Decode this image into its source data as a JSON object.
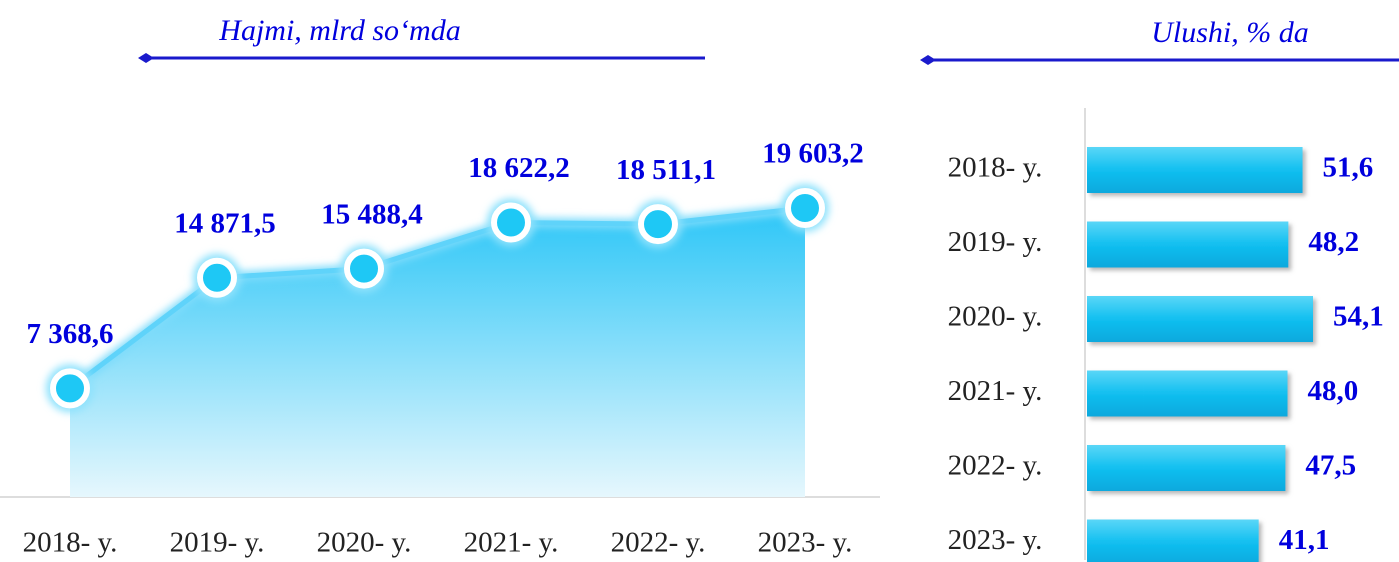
{
  "chart_data": [
    {
      "type": "area",
      "title": "Hajmi, mlrd so‘mda",
      "color": "#1ec8f5",
      "categories": [
        "2018- y.",
        "2019- y.",
        "2020- y.",
        "2021- y.",
        "2022- y.",
        "2023- y."
      ],
      "values": [
        7368.6,
        14871.5,
        15488.4,
        18622.2,
        18511.1,
        19603.2
      ],
      "value_labels": [
        "7 368,6",
        "14 871,5",
        "15 488,4",
        "18 622,2",
        "18 511,1",
        "19 603,2"
      ]
    },
    {
      "type": "bar",
      "title": "Ulushi, % da",
      "color": "#12bff0",
      "categories": [
        "2018- y.",
        "2019- y.",
        "2020- y.",
        "2021- y.",
        "2022- y.",
        "2023- y."
      ],
      "values": [
        51.6,
        48.2,
        54.1,
        48.0,
        47.5,
        41.1
      ],
      "value_labels": [
        "51,6",
        "48,2",
        "54,1",
        "48,0",
        "47,5",
        "41,1"
      ]
    }
  ]
}
